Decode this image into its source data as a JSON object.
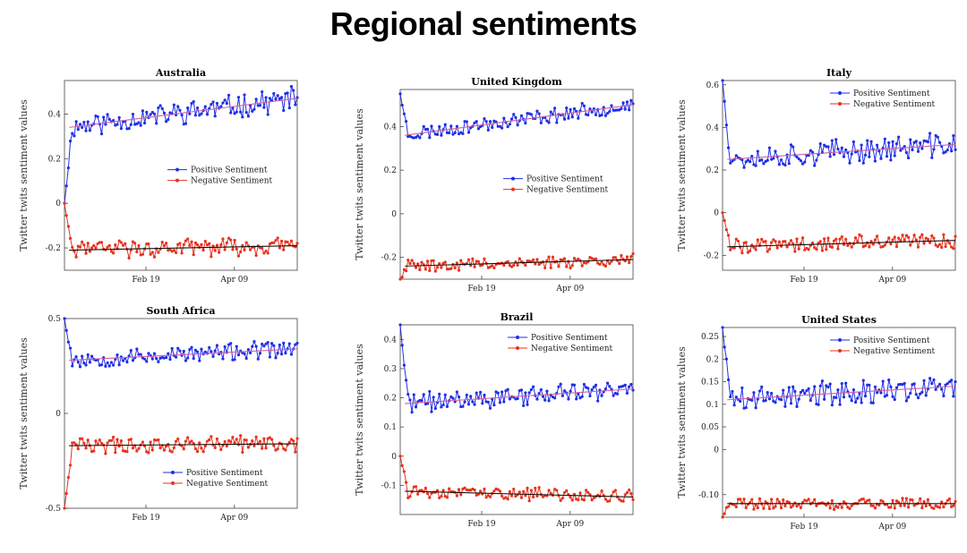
{
  "page_title": "Regional sentiments",
  "colors": {
    "positive": "#1f2fe6",
    "negative": "#e8321e",
    "positive_trend": "#d060a0",
    "negative_trend": "#111111"
  },
  "chart_data": [
    {
      "type": "line",
      "title": "Australia",
      "ylabel": "Twitter twits sentiment values",
      "ylim": [
        -0.3,
        0.55
      ],
      "yticks": [
        -0.2,
        0,
        0.2,
        0.4
      ],
      "ytick_labels": [
        "-0.2",
        "0",
        "0.2",
        "0.4"
      ],
      "xticks": [
        {
          "label": "Feb 19",
          "pos": 0.35
        },
        {
          "label": "Apr 09",
          "pos": 0.73
        }
      ],
      "legend": "middle-right",
      "grid": false,
      "n": 120,
      "seed": 11,
      "series": [
        {
          "name": "Positive Sentiment",
          "start": 0.0,
          "base": [
            0.34,
            0.47
          ],
          "noise": 0.045
        },
        {
          "name": "Negative Sentiment",
          "start": 0.0,
          "base": [
            -0.21,
            -0.19
          ],
          "noise": 0.035
        }
      ]
    },
    {
      "type": "line",
      "title": "United Kingdom",
      "ylabel": "Twitter twits sentiment values",
      "ylim": [
        -0.3,
        0.57
      ],
      "yticks": [
        -0.2,
        0,
        0.2,
        0.4
      ],
      "ytick_labels": [
        "-0.2",
        "0",
        "0.2",
        "0.4"
      ],
      "xticks": [
        {
          "label": "Feb 19",
          "pos": 0.35
        },
        {
          "label": "Apr 09",
          "pos": 0.73
        }
      ],
      "legend": "middle-right",
      "grid": false,
      "n": 120,
      "seed": 23,
      "series": [
        {
          "name": "Positive Sentiment",
          "start": 0.55,
          "base": [
            0.36,
            0.5
          ],
          "noise": 0.03
        },
        {
          "name": "Negative Sentiment",
          "start": -0.3,
          "base": [
            -0.24,
            -0.21
          ],
          "noise": 0.025
        }
      ]
    },
    {
      "type": "line",
      "title": "Italy",
      "ylabel": "Twitter twits sentiment values",
      "ylim": [
        -0.27,
        0.62
      ],
      "yticks": [
        -0.2,
        0,
        0.2,
        0.4,
        0.6
      ],
      "ytick_labels": [
        "-0.2",
        "0",
        "0.2",
        "0.4",
        "0.6"
      ],
      "xticks": [
        {
          "label": "Feb 19",
          "pos": 0.35
        },
        {
          "label": "Apr 09",
          "pos": 0.73
        }
      ],
      "legend": "top-right",
      "grid": false,
      "n": 120,
      "seed": 37,
      "series": [
        {
          "name": "Positive Sentiment",
          "start": 0.62,
          "base": [
            0.25,
            0.32
          ],
          "noise": 0.05
        },
        {
          "name": "Negative Sentiment",
          "start": 0.0,
          "base": [
            -0.16,
            -0.13
          ],
          "noise": 0.035
        }
      ]
    },
    {
      "type": "line",
      "title": "South Africa",
      "ylabel": "Twitter twits sentiment values",
      "ylim": [
        -0.5,
        0.5
      ],
      "yticks": [
        -0.5,
        0,
        0.5
      ],
      "ytick_labels": [
        "-0.5",
        "0",
        "0.5"
      ],
      "xticks": [
        {
          "label": "Feb 19",
          "pos": 0.35
        },
        {
          "label": "Apr 09",
          "pos": 0.73
        }
      ],
      "legend": "bottom-right",
      "grid": false,
      "n": 120,
      "seed": 53,
      "series": [
        {
          "name": "Positive Sentiment",
          "start": 0.5,
          "base": [
            0.28,
            0.34
          ],
          "noise": 0.04
        },
        {
          "name": "Negative Sentiment",
          "start": -0.5,
          "base": [
            -0.17,
            -0.16
          ],
          "noise": 0.04
        }
      ]
    },
    {
      "type": "line",
      "title": "Brazil",
      "ylabel": "Twitter twits sentiment values",
      "ylim": [
        -0.2,
        0.45
      ],
      "yticks": [
        -0.1,
        0,
        0.1,
        0.2,
        0.3,
        0.4
      ],
      "ytick_labels": [
        "-0.1",
        "0",
        "0.1",
        "0.2",
        "0.3",
        "0.4"
      ],
      "xticks": [
        {
          "label": "Feb 19",
          "pos": 0.35
        },
        {
          "label": "Apr 09",
          "pos": 0.73
        }
      ],
      "legend": "top-right",
      "grid": false,
      "n": 120,
      "seed": 71,
      "series": [
        {
          "name": "Positive Sentiment",
          "start": 0.45,
          "base": [
            0.18,
            0.23
          ],
          "noise": 0.03
        },
        {
          "name": "Negative Sentiment",
          "start": 0.0,
          "base": [
            -0.12,
            -0.14
          ],
          "noise": 0.02
        }
      ]
    },
    {
      "type": "line",
      "title": "United States",
      "ylabel": "Twitter twits sentiment values",
      "ylim": [
        -0.15,
        0.27
      ],
      "yticks": [
        -0.1,
        0,
        0.05,
        0.1,
        0.15,
        0.2,
        0.25
      ],
      "ytick_labels": [
        "-0.10",
        "0",
        "0.05",
        "0.1",
        "0.15",
        "0.2",
        "0.25"
      ],
      "xticks": [
        {
          "label": "Feb 19",
          "pos": 0.35
        },
        {
          "label": "Apr 09",
          "pos": 0.73
        }
      ],
      "legend": "top-right",
      "grid": false,
      "n": 120,
      "seed": 89,
      "series": [
        {
          "name": "Positive Sentiment",
          "start": 0.27,
          "base": [
            0.11,
            0.14
          ],
          "noise": 0.025
        },
        {
          "name": "Negative Sentiment",
          "start": -0.15,
          "base": [
            -0.12,
            -0.12
          ],
          "noise": 0.012
        }
      ]
    }
  ]
}
